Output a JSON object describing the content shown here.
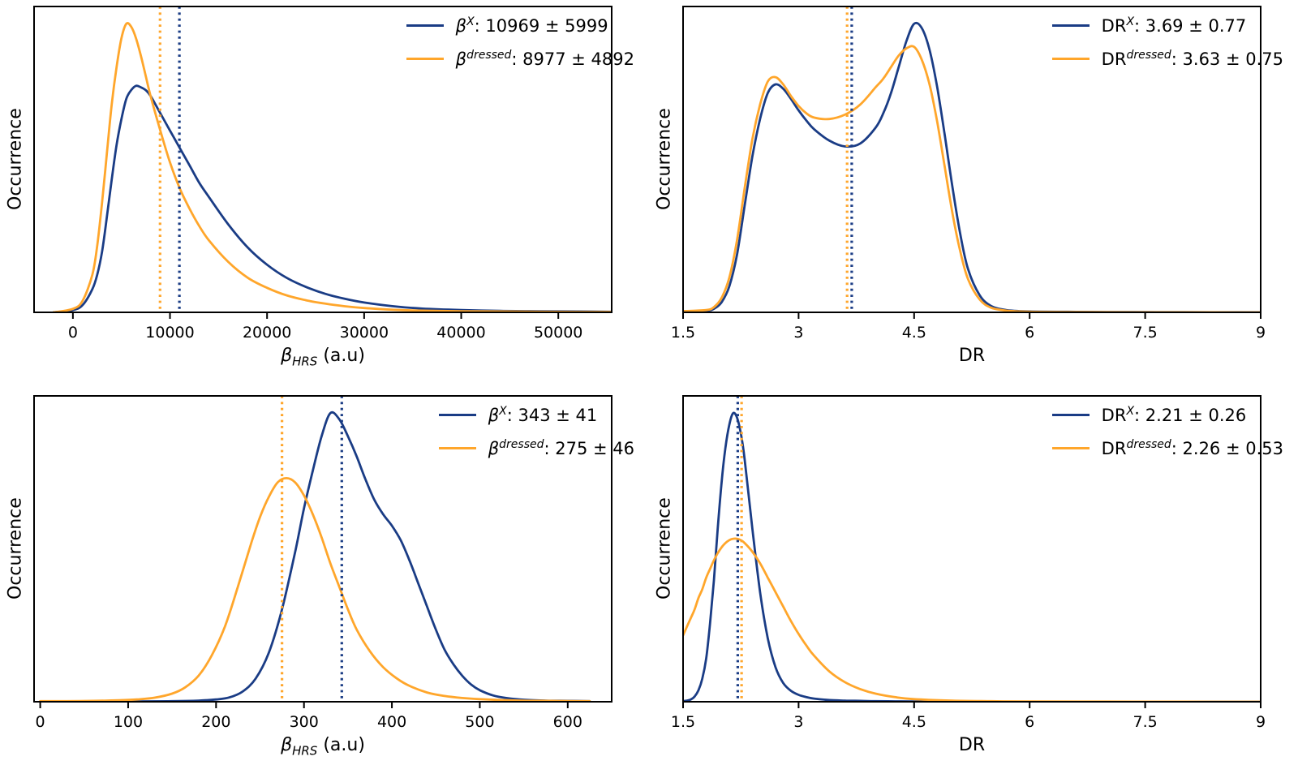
{
  "figure": {
    "background": "#ffffff"
  },
  "colors": {
    "blue": "#1a3c85",
    "orange": "#ffa62b",
    "axis": "#000000"
  },
  "ylabel": "Occurrence",
  "panels": [
    {
      "id": "beta-hrs-top",
      "xlabel": {
        "base": "β",
        "sub": "HRS",
        "rest": " (a.u)"
      },
      "legend": [
        {
          "base": "β",
          "sup": "X",
          "value": ": 10969 ± 5999",
          "color": "blue"
        },
        {
          "base": "β",
          "sup": "dressed",
          "value": ": 8977 ± 4892",
          "color": "orange"
        }
      ]
    },
    {
      "id": "dr-top",
      "xlabel": {
        "base": "DR",
        "sub": "",
        "rest": ""
      },
      "legend": [
        {
          "base": "DR",
          "sup": "X",
          "value": ": 3.69 ± 0.77",
          "color": "blue"
        },
        {
          "base": "DR",
          "sup": "dressed",
          "value": ": 3.63 ± 0.75",
          "color": "orange"
        }
      ]
    },
    {
      "id": "beta-hrs-bottom",
      "xlabel": {
        "base": "β",
        "sub": "HRS",
        "rest": " (a.u)"
      },
      "legend": [
        {
          "base": "β",
          "sup": "X",
          "value": ": 343 ± 41",
          "color": "blue"
        },
        {
          "base": "β",
          "sup": "dressed",
          "value": ": 275 ± 46",
          "color": "orange"
        }
      ]
    },
    {
      "id": "dr-bottom",
      "xlabel": {
        "base": "DR",
        "sub": "",
        "rest": ""
      },
      "legend": [
        {
          "base": "DR",
          "sup": "X",
          "value": ": 2.21 ± 0.26",
          "color": "blue"
        },
        {
          "base": "DR",
          "sup": "dressed",
          "value": ": 2.26 ± 0.53",
          "color": "orange"
        }
      ]
    }
  ],
  "chart_data": [
    {
      "type": "line",
      "title": "KDE of beta_HRS (undressed vs dressed)",
      "xlabel": "β_HRS (a.u)",
      "ylabel": "Occurrence",
      "legend_position": "upper right",
      "grid": false,
      "xlim": [
        -4000,
        55500
      ],
      "ylim": [
        0,
        1.06
      ],
      "xticks": [
        0,
        10000,
        20000,
        30000,
        40000,
        50000
      ],
      "series": [
        {
          "name": "β^X",
          "label": "β^X: 10969 ± 5999",
          "color": "blue",
          "mean": 10969,
          "std": 5999,
          "vline": 10969,
          "x": [
            -2000,
            0,
            1000,
            2000,
            2500,
            3000,
            3500,
            4000,
            4500,
            5000,
            5500,
            6000,
            6500,
            7000,
            7500,
            8000,
            9000,
            10000,
            11000,
            12000,
            13000,
            14000,
            16000,
            18000,
            20000,
            22000,
            24000,
            26000,
            28000,
            30000,
            33000,
            36000,
            40000,
            44000,
            48000,
            52000,
            56000
          ],
          "y": [
            0,
            0.008,
            0.025,
            0.08,
            0.13,
            0.21,
            0.33,
            0.46,
            0.58,
            0.67,
            0.74,
            0.77,
            0.785,
            0.78,
            0.77,
            0.75,
            0.69,
            0.63,
            0.57,
            0.51,
            0.45,
            0.4,
            0.305,
            0.225,
            0.165,
            0.12,
            0.088,
            0.064,
            0.047,
            0.034,
            0.021,
            0.013,
            0.008,
            0.005,
            0.004,
            0.003,
            0.002
          ]
        },
        {
          "name": "β^dressed",
          "label": "β^dressed: 8977 ± 4892",
          "color": "orange",
          "mean": 8977,
          "std": 4892,
          "vline": 8977,
          "x": [
            -2000,
            0,
            1000,
            2000,
            2500,
            3000,
            3500,
            4000,
            4500,
            5000,
            5500,
            6000,
            6500,
            7000,
            7500,
            8000,
            9000,
            10000,
            11000,
            12000,
            13000,
            14000,
            16000,
            18000,
            20000,
            22000,
            24000,
            26000,
            28000,
            30000,
            33000,
            36000,
            40000,
            44000,
            48000,
            52000,
            56000
          ],
          "y": [
            0,
            0.012,
            0.04,
            0.13,
            0.23,
            0.38,
            0.55,
            0.72,
            0.85,
            0.95,
            1.0,
            0.99,
            0.95,
            0.89,
            0.82,
            0.75,
            0.63,
            0.52,
            0.43,
            0.36,
            0.3,
            0.25,
            0.175,
            0.12,
            0.085,
            0.059,
            0.042,
            0.03,
            0.021,
            0.015,
            0.009,
            0.006,
            0.004,
            0.003,
            0.002,
            0.0015,
            0.001
          ]
        }
      ]
    },
    {
      "type": "line",
      "title": "KDE of DR (undressed vs dressed)",
      "xlabel": "DR",
      "ylabel": "Occurrence",
      "legend_position": "upper right",
      "grid": false,
      "xlim": [
        1.5,
        9
      ],
      "ylim": [
        0,
        1.06
      ],
      "xticks": [
        1.5,
        3,
        4.5,
        6,
        7.5,
        9
      ],
      "series": [
        {
          "name": "DR^X",
          "label": "DR^X: 3.69 ± 0.77",
          "color": "blue",
          "mean": 3.69,
          "std": 0.77,
          "vline": 3.69,
          "x": [
            1.5,
            1.8,
            1.9,
            2.0,
            2.1,
            2.2,
            2.3,
            2.4,
            2.5,
            2.6,
            2.7,
            2.8,
            2.9,
            3.0,
            3.1,
            3.2,
            3.4,
            3.6,
            3.8,
            4.0,
            4.1,
            4.2,
            4.3,
            4.4,
            4.5,
            4.6,
            4.7,
            4.8,
            4.9,
            5.0,
            5.1,
            5.2,
            5.35,
            5.5,
            5.7,
            6.0,
            6.5,
            7.0,
            8.0,
            9.0
          ],
          "y": [
            0.004,
            0.006,
            0.012,
            0.035,
            0.09,
            0.2,
            0.37,
            0.54,
            0.67,
            0.76,
            0.79,
            0.775,
            0.74,
            0.7,
            0.665,
            0.635,
            0.595,
            0.575,
            0.585,
            0.64,
            0.69,
            0.76,
            0.85,
            0.94,
            1.0,
            0.985,
            0.91,
            0.78,
            0.61,
            0.43,
            0.27,
            0.15,
            0.06,
            0.022,
            0.008,
            0.003,
            0.002,
            0.001,
            0.0005,
            0
          ]
        },
        {
          "name": "DR^dressed",
          "label": "DR^dressed: 3.63 ± 0.75",
          "color": "orange",
          "mean": 3.63,
          "std": 0.75,
          "vline": 3.63,
          "x": [
            1.5,
            1.8,
            1.9,
            2.0,
            2.1,
            2.2,
            2.3,
            2.4,
            2.5,
            2.6,
            2.7,
            2.8,
            2.9,
            3.0,
            3.1,
            3.2,
            3.4,
            3.6,
            3.8,
            4.0,
            4.1,
            4.2,
            4.3,
            4.4,
            4.5,
            4.6,
            4.7,
            4.8,
            4.9,
            5.0,
            5.1,
            5.2,
            5.35,
            5.5,
            5.7,
            6.0,
            6.5,
            7.0,
            8.0,
            9.0
          ],
          "y": [
            0.004,
            0.008,
            0.018,
            0.05,
            0.12,
            0.25,
            0.43,
            0.6,
            0.72,
            0.8,
            0.815,
            0.79,
            0.75,
            0.715,
            0.69,
            0.675,
            0.67,
            0.685,
            0.72,
            0.78,
            0.81,
            0.85,
            0.89,
            0.915,
            0.92,
            0.875,
            0.79,
            0.66,
            0.5,
            0.34,
            0.21,
            0.115,
            0.045,
            0.016,
            0.006,
            0.002,
            0.001,
            0.0005,
            0.0003,
            0
          ]
        }
      ]
    },
    {
      "type": "line",
      "title": "KDE of beta_HRS (undressed vs dressed, small molecule)",
      "xlabel": "β_HRS (a.u)",
      "ylabel": "Occurrence",
      "legend_position": "upper right",
      "grid": false,
      "xlim": [
        -7,
        650
      ],
      "ylim": [
        0,
        1.06
      ],
      "xticks": [
        0,
        100,
        200,
        300,
        400,
        500,
        600
      ],
      "series": [
        {
          "name": "β^X",
          "label": "β^X: 343 ± 41",
          "color": "blue",
          "mean": 343,
          "std": 41,
          "vline": 343,
          "x": [
            0,
            100,
            150,
            180,
            200,
            215,
            230,
            245,
            260,
            275,
            290,
            300,
            310,
            320,
            330,
            340,
            350,
            360,
            370,
            380,
            390,
            400,
            410,
            420,
            430,
            440,
            450,
            460,
            470,
            480,
            490,
            500,
            515,
            530,
            550,
            575,
            600,
            625
          ],
          "y": [
            0,
            0.001,
            0.002,
            0.004,
            0.008,
            0.015,
            0.035,
            0.08,
            0.17,
            0.32,
            0.52,
            0.67,
            0.8,
            0.92,
            1.0,
            0.98,
            0.92,
            0.85,
            0.77,
            0.7,
            0.65,
            0.61,
            0.56,
            0.49,
            0.41,
            0.33,
            0.25,
            0.18,
            0.13,
            0.09,
            0.06,
            0.04,
            0.022,
            0.013,
            0.007,
            0.004,
            0.003,
            0.002
          ]
        },
        {
          "name": "β^dressed",
          "label": "β^dressed: 275 ± 46",
          "color": "orange",
          "mean": 275,
          "std": 46,
          "vline": 275,
          "x": [
            0,
            30,
            60,
            90,
            110,
            130,
            150,
            165,
            180,
            195,
            210,
            225,
            240,
            250,
            260,
            270,
            280,
            290,
            300,
            310,
            320,
            330,
            340,
            350,
            360,
            375,
            390,
            405,
            420,
            440,
            460,
            480,
            500,
            525,
            550,
            580,
            610,
            625
          ],
          "y": [
            0.002,
            0.002,
            0.003,
            0.005,
            0.008,
            0.014,
            0.028,
            0.05,
            0.09,
            0.16,
            0.26,
            0.4,
            0.55,
            0.64,
            0.71,
            0.76,
            0.775,
            0.76,
            0.715,
            0.65,
            0.57,
            0.48,
            0.4,
            0.32,
            0.25,
            0.175,
            0.12,
            0.082,
            0.055,
            0.032,
            0.02,
            0.013,
            0.009,
            0.006,
            0.004,
            0.003,
            0.002,
            0.002
          ]
        }
      ]
    },
    {
      "type": "line",
      "title": "KDE of DR (undressed vs dressed, small molecule)",
      "xlabel": "DR",
      "ylabel": "Occurrence",
      "legend_position": "upper right",
      "grid": false,
      "xlim": [
        1.5,
        9
      ],
      "ylim": [
        0,
        1.06
      ],
      "xticks": [
        1.5,
        3,
        4.5,
        6,
        7.5,
        9
      ],
      "series": [
        {
          "name": "DR^X",
          "label": "DR^X: 2.21 ± 0.26",
          "color": "blue",
          "mean": 2.21,
          "std": 0.26,
          "vline": 2.21,
          "x": [
            1.5,
            1.55,
            1.6,
            1.65,
            1.7,
            1.75,
            1.8,
            1.85,
            1.9,
            1.95,
            2.0,
            2.05,
            2.1,
            2.15,
            2.2,
            2.25,
            2.3,
            2.4,
            2.5,
            2.6,
            2.7,
            2.8,
            2.9,
            3.0,
            3.1,
            3.2,
            3.4,
            3.6,
            3.8,
            4.0,
            4.25,
            4.5,
            5.0,
            5.5,
            6.0,
            7.0,
            8.0,
            9.0
          ],
          "y": [
            0.002,
            0.004,
            0.008,
            0.018,
            0.04,
            0.08,
            0.15,
            0.27,
            0.42,
            0.6,
            0.76,
            0.88,
            0.96,
            1.0,
            0.985,
            0.93,
            0.84,
            0.6,
            0.38,
            0.22,
            0.12,
            0.065,
            0.038,
            0.024,
            0.016,
            0.011,
            0.006,
            0.004,
            0.003,
            0.002,
            0.0015,
            0.001,
            0.0008,
            0.0005,
            0.0003,
            0.0002,
            0.0001,
            0
          ]
        },
        {
          "name": "DR^dressed",
          "label": "DR^dressed: 2.26 ± 0.53",
          "color": "orange",
          "mean": 2.26,
          "std": 0.53,
          "vline": 2.26,
          "x": [
            1.5,
            1.55,
            1.6,
            1.65,
            1.7,
            1.75,
            1.8,
            1.85,
            1.9,
            1.95,
            2.0,
            2.05,
            2.1,
            2.15,
            2.2,
            2.25,
            2.3,
            2.4,
            2.5,
            2.6,
            2.7,
            2.8,
            2.9,
            3.0,
            3.1,
            3.2,
            3.4,
            3.6,
            3.8,
            4.0,
            4.25,
            4.5,
            5.0,
            5.5,
            6.0,
            7.0,
            8.0,
            9.0
          ],
          "y": [
            0.23,
            0.26,
            0.29,
            0.32,
            0.36,
            0.39,
            0.43,
            0.46,
            0.49,
            0.515,
            0.535,
            0.55,
            0.56,
            0.565,
            0.565,
            0.56,
            0.55,
            0.52,
            0.48,
            0.43,
            0.38,
            0.33,
            0.28,
            0.235,
            0.195,
            0.16,
            0.105,
            0.068,
            0.044,
            0.028,
            0.016,
            0.009,
            0.004,
            0.002,
            0.001,
            0.0005,
            0.0002,
            0
          ]
        }
      ]
    }
  ]
}
